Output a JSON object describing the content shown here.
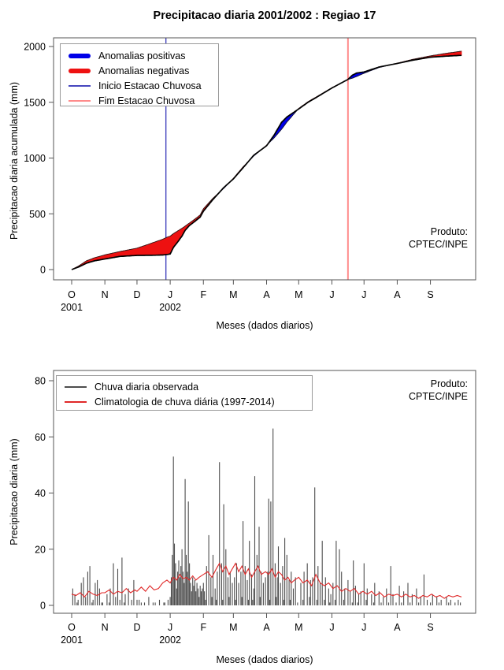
{
  "title": "Precipitacao diaria 2001/2002 : Regiao 17",
  "produto": {
    "line1": "Produto:",
    "line2": "CPTEC/INPE"
  },
  "chart_data": [
    {
      "type": "area",
      "title": "Precipitacao diaria 2001/2002 : Regiao 17",
      "xlabel": "Meses (dados diarios)",
      "ylabel": "Precipitacao diaria acumulada (mm)",
      "ylim": [
        0,
        2000
      ],
      "yticks": [
        0,
        500,
        1000,
        1500,
        2000
      ],
      "month_labels": [
        "O",
        "N",
        "D",
        "J",
        "F",
        "M",
        "A",
        "M",
        "J",
        "J",
        "A",
        "S"
      ],
      "month_days": [
        0,
        31,
        61,
        92,
        123,
        151,
        182,
        212,
        243,
        273,
        304,
        335
      ],
      "years": [
        {
          "label": "2001",
          "day": 0
        },
        {
          "label": "2002",
          "day": 92
        }
      ],
      "legend": [
        {
          "label": "Anomalias positivas",
          "color": "#0000e8",
          "thick": true
        },
        {
          "label": "Anomalias negativas",
          "color": "#ee1111",
          "thick": true
        },
        {
          "label": "Inicio Estacao Chuvosa",
          "color": "#4646be",
          "thick": false
        },
        {
          "label": "Fim Estacao Chuvosa",
          "color": "#ff8c8c",
          "thick": false
        }
      ],
      "inicio_day": 88,
      "fim_day": 258,
      "colors": {
        "positive": "#0000e8",
        "negative": "#ee1111",
        "observed_line": "#000000",
        "climatology_line": "#1a1a1a",
        "inicio_line": "#4646be",
        "fim_line": "#ff8c8c"
      },
      "days": [
        0,
        7,
        14,
        21,
        31,
        45,
        61,
        75,
        85,
        89,
        92,
        95,
        100,
        103,
        106,
        110,
        115,
        120,
        123,
        132,
        142,
        151,
        160,
        170,
        182,
        189,
        196,
        201,
        212,
        221,
        227,
        243,
        258,
        262,
        266,
        273,
        287,
        304,
        318,
        335,
        349,
        364
      ],
      "obs": [
        0,
        25,
        58,
        78,
        95,
        118,
        127,
        128,
        131,
        135,
        140,
        198,
        260,
        300,
        352,
        395,
        432,
        470,
        523,
        629,
        735,
        813,
        912,
        1025,
        1110,
        1205,
        1320,
        1368,
        1440,
        1502,
        1535,
        1628,
        1705,
        1742,
        1762,
        1772,
        1816,
        1848,
        1876,
        1904,
        1913,
        1921
      ],
      "clim": [
        0,
        35,
        80,
        105,
        132,
        162,
        192,
        238,
        272,
        290,
        300,
        322,
        352,
        370,
        390,
        418,
        452,
        490,
        545,
        640,
        728,
        818,
        920,
        1018,
        1115,
        1180,
        1258,
        1322,
        1445,
        1507,
        1540,
        1630,
        1705,
        1716,
        1731,
        1760,
        1812,
        1850,
        1884,
        1916,
        1938,
        1958
      ]
    },
    {
      "type": "bar",
      "xlabel": "Meses (dados diarios)",
      "ylabel": "Precipitacao diaria (mm)",
      "ylim": [
        0,
        80
      ],
      "yticks": [
        0,
        20,
        40,
        60,
        80
      ],
      "month_labels": [
        "O",
        "N",
        "D",
        "J",
        "F",
        "M",
        "A",
        "M",
        "J",
        "J",
        "A",
        "S"
      ],
      "month_days": [
        0,
        31,
        61,
        92,
        123,
        151,
        182,
        212,
        243,
        273,
        304,
        335
      ],
      "years": [
        {
          "label": "2001",
          "day": 0
        },
        {
          "label": "2002",
          "day": 92
        }
      ],
      "legend": [
        {
          "label": "Chuva diaria observada",
          "color": "#4d4d4d",
          "thick": false
        },
        {
          "label": "Climatologia de chuva diária (1997-2014)",
          "color": "#e02828",
          "thick": false
        }
      ],
      "colors": {
        "bars": "#4d4d4d",
        "clim": "#e02828"
      },
      "bars": [
        [
          1,
          6
        ],
        [
          3,
          4
        ],
        [
          5,
          1
        ],
        [
          6,
          2
        ],
        [
          9,
          8
        ],
        [
          11,
          10
        ],
        [
          13,
          3
        ],
        [
          15,
          12
        ],
        [
          17,
          14
        ],
        [
          19,
          1
        ],
        [
          20,
          2
        ],
        [
          22,
          8
        ],
        [
          24,
          9
        ],
        [
          26,
          6
        ],
        [
          28,
          1
        ],
        [
          29,
          1
        ],
        [
          33,
          4
        ],
        [
          35,
          1
        ],
        [
          36,
          6
        ],
        [
          39,
          15
        ],
        [
          41,
          3
        ],
        [
          43,
          13
        ],
        [
          45,
          2
        ],
        [
          47,
          17
        ],
        [
          49,
          1
        ],
        [
          50,
          4
        ],
        [
          53,
          6
        ],
        [
          56,
          2
        ],
        [
          58,
          9
        ],
        [
          61,
          2
        ],
        [
          63,
          2
        ],
        [
          65,
          1
        ],
        [
          68,
          1
        ],
        [
          72,
          3
        ],
        [
          76,
          1
        ],
        [
          78,
          1
        ],
        [
          82,
          2
        ],
        [
          86,
          1
        ],
        [
          87,
          1
        ],
        [
          90,
          2
        ],
        [
          92,
          3
        ],
        [
          93,
          10
        ],
        [
          94,
          18
        ],
        [
          95,
          53
        ],
        [
          96,
          22
        ],
        [
          97,
          15
        ],
        [
          98,
          6
        ],
        [
          99,
          12
        ],
        [
          100,
          16
        ],
        [
          101,
          10
        ],
        [
          102,
          14
        ],
        [
          103,
          20
        ],
        [
          104,
          12
        ],
        [
          105,
          8
        ],
        [
          106,
          45
        ],
        [
          107,
          18
        ],
        [
          108,
          12
        ],
        [
          109,
          37
        ],
        [
          110,
          15
        ],
        [
          111,
          8
        ],
        [
          112,
          5
        ],
        [
          113,
          10
        ],
        [
          114,
          7
        ],
        [
          115,
          9
        ],
        [
          116,
          5
        ],
        [
          117,
          8
        ],
        [
          118,
          6
        ],
        [
          119,
          3
        ],
        [
          120,
          7
        ],
        [
          121,
          5
        ],
        [
          122,
          6
        ],
        [
          123,
          8
        ],
        [
          124,
          5
        ],
        [
          125,
          2
        ],
        [
          126,
          14
        ],
        [
          128,
          25
        ],
        [
          130,
          10
        ],
        [
          131,
          3
        ],
        [
          132,
          18
        ],
        [
          134,
          6
        ],
        [
          135,
          2
        ],
        [
          136,
          12
        ],
        [
          138,
          51
        ],
        [
          140,
          15
        ],
        [
          141,
          2
        ],
        [
          142,
          36
        ],
        [
          144,
          20
        ],
        [
          146,
          10
        ],
        [
          147,
          3
        ],
        [
          148,
          12
        ],
        [
          150,
          8
        ],
        [
          152,
          10
        ],
        [
          153,
          2
        ],
        [
          154,
          15
        ],
        [
          156,
          8
        ],
        [
          158,
          12
        ],
        [
          159,
          3
        ],
        [
          160,
          30
        ],
        [
          162,
          14
        ],
        [
          164,
          9
        ],
        [
          165,
          2
        ],
        [
          166,
          23
        ],
        [
          168,
          11
        ],
        [
          169,
          2
        ],
        [
          170,
          6
        ],
        [
          171,
          46
        ],
        [
          173,
          18
        ],
        [
          175,
          28
        ],
        [
          176,
          3
        ],
        [
          177,
          12
        ],
        [
          179,
          8
        ],
        [
          181,
          10
        ],
        [
          183,
          12
        ],
        [
          184,
          38
        ],
        [
          185,
          2
        ],
        [
          186,
          37
        ],
        [
          188,
          63
        ],
        [
          190,
          15
        ],
        [
          191,
          3
        ],
        [
          192,
          10
        ],
        [
          193,
          21
        ],
        [
          195,
          8
        ],
        [
          197,
          14
        ],
        [
          198,
          2
        ],
        [
          199,
          24
        ],
        [
          201,
          18
        ],
        [
          203,
          9
        ],
        [
          204,
          2
        ],
        [
          205,
          12
        ],
        [
          207,
          6
        ],
        [
          209,
          10
        ],
        [
          211,
          1
        ],
        [
          214,
          8
        ],
        [
          216,
          2
        ],
        [
          217,
          12
        ],
        [
          220,
          15
        ],
        [
          222,
          3
        ],
        [
          223,
          9
        ],
        [
          225,
          10
        ],
        [
          227,
          42
        ],
        [
          229,
          2
        ],
        [
          230,
          14
        ],
        [
          232,
          8
        ],
        [
          234,
          23
        ],
        [
          236,
          2
        ],
        [
          237,
          10
        ],
        [
          240,
          6
        ],
        [
          241,
          1
        ],
        [
          242,
          4
        ],
        [
          244,
          8
        ],
        [
          246,
          2
        ],
        [
          247,
          23
        ],
        [
          250,
          20
        ],
        [
          252,
          12
        ],
        [
          254,
          2
        ],
        [
          255,
          6
        ],
        [
          258,
          9
        ],
        [
          260,
          5
        ],
        [
          262,
          1
        ],
        [
          263,
          16
        ],
        [
          265,
          7
        ],
        [
          267,
          1
        ],
        [
          268,
          4
        ],
        [
          270,
          5
        ],
        [
          273,
          15
        ],
        [
          275,
          2
        ],
        [
          276,
          6
        ],
        [
          280,
          4
        ],
        [
          282,
          1
        ],
        [
          283,
          8
        ],
        [
          287,
          5
        ],
        [
          289,
          1
        ],
        [
          291,
          3
        ],
        [
          294,
          6
        ],
        [
          296,
          1
        ],
        [
          298,
          14
        ],
        [
          300,
          4
        ],
        [
          303,
          1
        ],
        [
          306,
          7
        ],
        [
          308,
          1
        ],
        [
          310,
          5
        ],
        [
          314,
          8
        ],
        [
          316,
          1
        ],
        [
          318,
          4
        ],
        [
          322,
          6
        ],
        [
          324,
          1
        ],
        [
          326,
          3
        ],
        [
          329,
          11
        ],
        [
          332,
          2
        ],
        [
          335,
          1
        ],
        [
          337,
          4
        ],
        [
          341,
          3
        ],
        [
          343,
          1
        ],
        [
          345,
          2
        ],
        [
          350,
          3
        ],
        [
          352,
          1
        ],
        [
          354,
          2
        ],
        [
          358,
          1
        ],
        [
          361,
          2
        ],
        [
          363,
          1
        ]
      ],
      "clim": [
        [
          0,
          4
        ],
        [
          4,
          3.5
        ],
        [
          8,
          4.5
        ],
        [
          12,
          3
        ],
        [
          16,
          5
        ],
        [
          20,
          4
        ],
        [
          24,
          3.5
        ],
        [
          28,
          4.5
        ],
        [
          31,
          4.5
        ],
        [
          35,
          5.5
        ],
        [
          39,
          4
        ],
        [
          43,
          5
        ],
        [
          47,
          4.5
        ],
        [
          51,
          6
        ],
        [
          55,
          4.5
        ],
        [
          59,
          5.5
        ],
        [
          61,
          5
        ],
        [
          65,
          6.5
        ],
        [
          69,
          5
        ],
        [
          73,
          7
        ],
        [
          77,
          5.5
        ],
        [
          81,
          6
        ],
        [
          85,
          8
        ],
        [
          89,
          9
        ],
        [
          92,
          8
        ],
        [
          95,
          10
        ],
        [
          98,
          9
        ],
        [
          101,
          11
        ],
        [
          104,
          9.5
        ],
        [
          107,
          10
        ],
        [
          110,
          9
        ],
        [
          113,
          10.5
        ],
        [
          116,
          9
        ],
        [
          119,
          10
        ],
        [
          123,
          11
        ],
        [
          127,
          12
        ],
        [
          131,
          10
        ],
        [
          135,
          13
        ],
        [
          138,
          15
        ],
        [
          141,
          12
        ],
        [
          144,
          14
        ],
        [
          147,
          11
        ],
        [
          150,
          13
        ],
        [
          153,
          15
        ],
        [
          156,
          12
        ],
        [
          159,
          14
        ],
        [
          162,
          11
        ],
        [
          165,
          13
        ],
        [
          168,
          10
        ],
        [
          171,
          12
        ],
        [
          174,
          14
        ],
        [
          177,
          11
        ],
        [
          181,
          12
        ],
        [
          184,
          11
        ],
        [
          187,
          13
        ],
        [
          190,
          10
        ],
        [
          193,
          12
        ],
        [
          196,
          11
        ],
        [
          199,
          9
        ],
        [
          202,
          10
        ],
        [
          205,
          8
        ],
        [
          208,
          9
        ],
        [
          212,
          10
        ],
        [
          216,
          8
        ],
        [
          220,
          9
        ],
        [
          224,
          7
        ],
        [
          228,
          11
        ],
        [
          232,
          8
        ],
        [
          236,
          7
        ],
        [
          240,
          8
        ],
        [
          244,
          6
        ],
        [
          248,
          7
        ],
        [
          252,
          5
        ],
        [
          256,
          6
        ],
        [
          260,
          5
        ],
        [
          264,
          6
        ],
        [
          268,
          4
        ],
        [
          272,
          5
        ],
        [
          276,
          4
        ],
        [
          280,
          5
        ],
        [
          284,
          3.5
        ],
        [
          288,
          4.5
        ],
        [
          292,
          3
        ],
        [
          296,
          4
        ],
        [
          300,
          3.5
        ],
        [
          304,
          4
        ],
        [
          308,
          3
        ],
        [
          312,
          4
        ],
        [
          316,
          3
        ],
        [
          320,
          3.5
        ],
        [
          324,
          2.5
        ],
        [
          328,
          3.5
        ],
        [
          332,
          3
        ],
        [
          336,
          4
        ],
        [
          340,
          3
        ],
        [
          344,
          3.5
        ],
        [
          348,
          2.5
        ],
        [
          352,
          3.5
        ],
        [
          356,
          3
        ],
        [
          360,
          3.5
        ],
        [
          364,
          3
        ]
      ]
    }
  ]
}
